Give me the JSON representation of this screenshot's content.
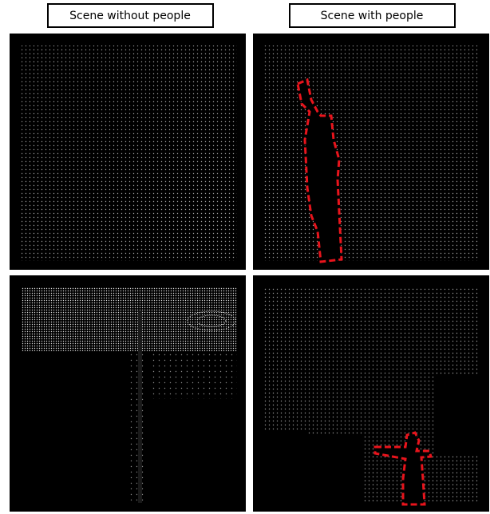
{
  "headers": [
    "Scene without people",
    "Scene with people"
  ]
}
